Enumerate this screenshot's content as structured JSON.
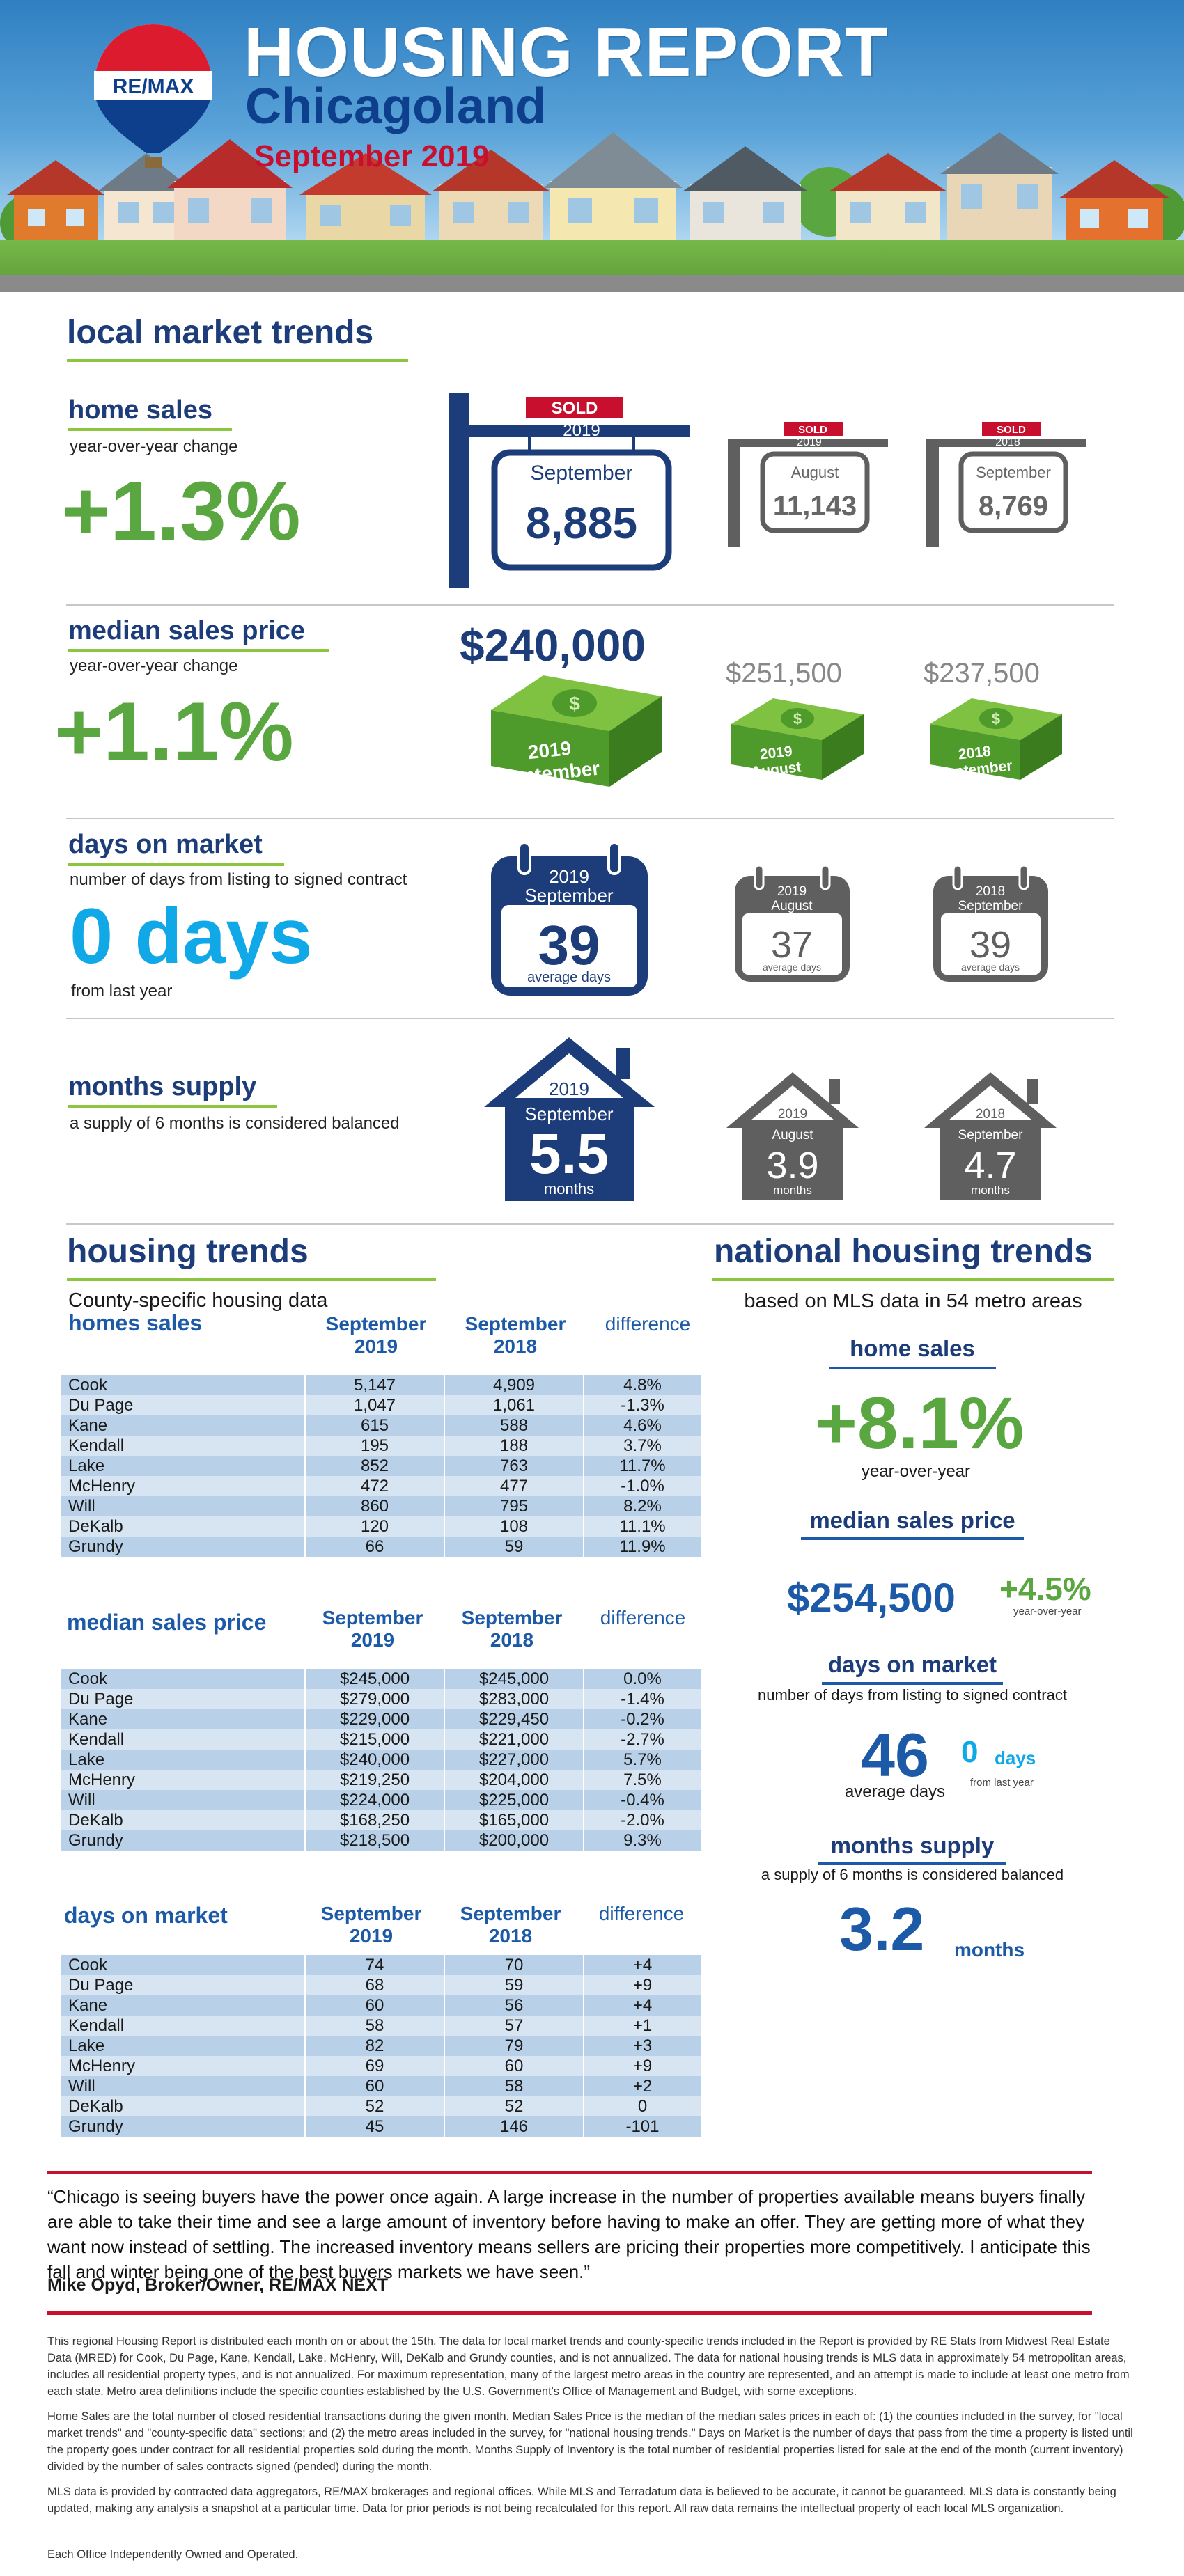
{
  "header": {
    "brand": "RE/MAX",
    "title": "HOUSING REPORT",
    "city": "Chicagoland",
    "month": "September 2019"
  },
  "local": {
    "title": "local market trends",
    "home_sales": {
      "title": "home sales",
      "subtitle": "year-over-year change",
      "change": "+1.3%",
      "main": {
        "tag": "SOLD",
        "year": "2019",
        "month": "September",
        "value": "8,885"
      },
      "prev1": {
        "tag": "SOLD",
        "year": "2019",
        "month": "August",
        "value": "11,143"
      },
      "prev2": {
        "tag": "SOLD",
        "year": "2018",
        "month": "September",
        "value": "8,769"
      }
    },
    "median_price": {
      "title": "median sales price",
      "subtitle": "year-over-year change",
      "change": "+1.1%",
      "main": {
        "price": "$240,000",
        "year": "2019",
        "month": "September"
      },
      "prev1": {
        "price": "$251,500",
        "year": "2019",
        "month": "August"
      },
      "prev2": {
        "price": "$237,500",
        "year": "2018",
        "month": "September"
      }
    },
    "days_on_market": {
      "title": "days on market",
      "subtitle": "number of days from listing to signed contract",
      "change": "0 days",
      "change_note": "from last year",
      "main": {
        "year": "2019",
        "month": "September",
        "value": "39",
        "unit": "average days"
      },
      "prev1": {
        "year": "2019",
        "month": "August",
        "value": "37",
        "unit": "average days"
      },
      "prev2": {
        "year": "2018",
        "month": "September",
        "value": "39",
        "unit": "average days"
      }
    },
    "months_supply": {
      "title": "months supply",
      "subtitle": "a supply of 6 months is considered balanced",
      "main": {
        "year": "2019",
        "month": "September",
        "value": "5.5",
        "unit": "months"
      },
      "prev1": {
        "year": "2019",
        "month": "August",
        "value": "3.9",
        "unit": "months"
      },
      "prev2": {
        "year": "2018",
        "month": "September",
        "value": "4.7",
        "unit": "months"
      }
    }
  },
  "housing_trends": {
    "title": "housing trends",
    "subtitle": "County-specific housing data",
    "columns": {
      "a_month": "September",
      "a_year": "2019",
      "b_month": "September",
      "b_year": "2018",
      "diff": "difference"
    },
    "home_sales": {
      "title": "homes sales",
      "rows": [
        [
          "Cook",
          "5,147",
          "4,909",
          "4.8%"
        ],
        [
          "Du Page",
          "1,047",
          "1,061",
          "-1.3%"
        ],
        [
          "Kane",
          "615",
          "588",
          "4.6%"
        ],
        [
          "Kendall",
          "195",
          "188",
          "3.7%"
        ],
        [
          "Lake",
          "852",
          "763",
          "11.7%"
        ],
        [
          "McHenry",
          "472",
          "477",
          "-1.0%"
        ],
        [
          "Will",
          "860",
          "795",
          "8.2%"
        ],
        [
          "DeKalb",
          "120",
          "108",
          "11.1%"
        ],
        [
          "Grundy",
          "66",
          "59",
          "11.9%"
        ]
      ]
    },
    "median_price": {
      "title": "median sales price",
      "rows": [
        [
          "Cook",
          "$245,000",
          "$245,000",
          "0.0%"
        ],
        [
          "Du Page",
          "$279,000",
          "$283,000",
          "-1.4%"
        ],
        [
          "Kane",
          "$229,000",
          "$229,450",
          "-0.2%"
        ],
        [
          "Kendall",
          "$215,000",
          "$221,000",
          "-2.7%"
        ],
        [
          "Lake",
          "$240,000",
          "$227,000",
          "5.7%"
        ],
        [
          "McHenry",
          "$219,250",
          "$204,000",
          "7.5%"
        ],
        [
          "Will",
          "$224,000",
          "$225,000",
          "-0.4%"
        ],
        [
          "DeKalb",
          "$168,250",
          "$165,000",
          "-2.0%"
        ],
        [
          "Grundy",
          "$218,500",
          "$200,000",
          "9.3%"
        ]
      ]
    },
    "days_on_market": {
      "title": "days on market",
      "rows": [
        [
          "Cook",
          "74",
          "70",
          "+4"
        ],
        [
          "Du Page",
          "68",
          "59",
          "+9"
        ],
        [
          "Kane",
          "60",
          "56",
          "+4"
        ],
        [
          "Kendall",
          "58",
          "57",
          "+1"
        ],
        [
          "Lake",
          "82",
          "79",
          "+3"
        ],
        [
          "McHenry",
          "69",
          "60",
          "+9"
        ],
        [
          "Will",
          "60",
          "58",
          "+2"
        ],
        [
          "DeKalb",
          "52",
          "52",
          "0"
        ],
        [
          "Grundy",
          "45",
          "146",
          "-101"
        ]
      ]
    }
  },
  "national": {
    "title": "national housing trends",
    "subtitle": "based on MLS data in 54 metro areas",
    "home_sales": {
      "title": "home sales",
      "value": "+8.1%",
      "note": "year-over-year"
    },
    "median_price": {
      "title": "median sales price",
      "value": "$254,500",
      "change": "+4.5%",
      "note": "year-over-year"
    },
    "days_on_market": {
      "title": "days on market",
      "subtitle": "number of days from listing to signed contract",
      "value": "46",
      "unit": "average days",
      "change": "0",
      "change_unit": "days",
      "change_note": "from last year"
    },
    "months_supply": {
      "title": "months supply",
      "subtitle": "a supply of 6 months is considered balanced",
      "value": "3.2",
      "unit": "months"
    }
  },
  "quote": {
    "text": "“Chicago is seeing buyers have the power once again. A large increase in the number of properties available means buyers finally are able to take their time and see a large amount of inventory before having to make an offer. They are getting more of what they want now instead of settling. The increased inventory means sellers are pricing their properties more competitively. I anticipate this fall and winter being one of the best buyers markets we have seen.”",
    "author": "Mike Opyd, Broker/Owner, RE/MAX NEXT"
  },
  "footnotes": {
    "p1": "This regional Housing Report is distributed each month on or about the 15th. The data for local market trends and county-specific trends included in the Report is provided by RE Stats from Midwest Real Estate Data (MRED) for Cook, Du Page, Kane, Kendall, Lake, McHenry, Will, DeKalb and Grundy counties, and is not annualized. The data for national housing trends is MLS data in approximately 54 metropolitan areas, includes all residential property types, and is not annualized. For maximum representation, many of the largest metro areas in the country are represented, and an attempt is made to include at least one metro from each state. Metro area definitions include the specific counties established by the U.S. Government's Office of Management and Budget, with some exceptions.",
    "p2": "Home Sales are the total number of closed residential transactions during the given month. Median Sales Price is the median of the median sales prices in each of: (1) the counties included in the survey, for \"local market trends\" and \"county-specific data\" sections; and (2) the metro areas included in the survey, for \"national housing trends.\" Days on Market is the number of days that pass from the time a property is listed until the property goes under contract for all residential properties sold during the month. Months Supply of Inventory is the total number of residential properties listed for sale at the end of the month (current inventory) divided by the number of sales contracts signed (pended) during the month.",
    "p3": "MLS data is provided by contracted data aggregators, RE/MAX brokerages and regional offices. While MLS and Terradatum data is believed to be accurate, it cannot be guaranteed. MLS data is constantly being updated, making any analysis a snapshot at a particular time. Data for prior periods is not being recalculated for this report. All raw data remains the intellectual property of each local MLS organization.",
    "p4": "Each Office Independently Owned and Operated."
  },
  "colors": {
    "navy": "#1c3d7a",
    "green": "#5aa640",
    "cyan": "#11a8e8",
    "red": "#c8102e",
    "gray": "#5f5f5f"
  }
}
